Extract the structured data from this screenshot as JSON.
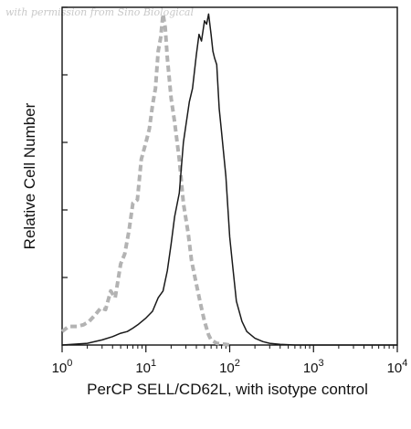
{
  "watermark": "with permission from Sino Biological",
  "chart_data": {
    "type": "line",
    "title": "",
    "xlabel": "PerCP SELL/CD62L, with isotype control",
    "ylabel": "Relative Cell Number",
    "x_scale": "log",
    "xlim": [
      1,
      10000
    ],
    "ylim": [
      0,
      100
    ],
    "x_ticks": [
      {
        "value": 1,
        "base": "10",
        "exp": "0"
      },
      {
        "value": 10,
        "base": "10",
        "exp": "1"
      },
      {
        "value": 100,
        "base": "10",
        "exp": "2"
      },
      {
        "value": 1000,
        "base": "10",
        "exp": "3"
      },
      {
        "value": 10000,
        "base": "10",
        "exp": "4"
      }
    ],
    "y_ticks": [
      0,
      20,
      40,
      60,
      80,
      100
    ],
    "grid": false,
    "legend": "none",
    "series": [
      {
        "style": "dashed",
        "color": "#b3b3b3",
        "x": [
          1.0,
          1.2,
          1.5,
          1.8,
          2.1,
          2.5,
          2.9,
          3.3,
          3.8,
          4.3,
          5.0,
          5.6,
          6.3,
          7.0,
          7.9,
          8.8,
          10,
          11,
          12,
          13,
          14,
          15,
          16,
          17,
          18,
          20,
          22,
          25,
          28,
          32,
          35,
          40,
          45,
          50,
          56,
          60,
          65,
          70,
          80,
          90,
          100
        ],
        "y": [
          4,
          5.5,
          5.5,
          6,
          7,
          9,
          11,
          10.5,
          16,
          14,
          24,
          27,
          34,
          42,
          43,
          55,
          60,
          64,
          71,
          76,
          87,
          91,
          98,
          94,
          85,
          73,
          66,
          55,
          42,
          33,
          25,
          18,
          12,
          7,
          3,
          1.5,
          1,
          0.5,
          0.3,
          0.2,
          0
        ]
      },
      {
        "style": "solid",
        "color": "#1a1a1a",
        "x": [
          1.0,
          2,
          3,
          4,
          5,
          6,
          7,
          8,
          10,
          12,
          14,
          16,
          18,
          20,
          22,
          25,
          28,
          30,
          33,
          36,
          40,
          43,
          46,
          50,
          53,
          56,
          60,
          63,
          66,
          70,
          75,
          80,
          90,
          100,
          110,
          120,
          140,
          160,
          200,
          250,
          300,
          400,
          600,
          1000,
          10000
        ],
        "y": [
          0,
          0.5,
          1.5,
          2.5,
          3.5,
          4,
          5,
          6,
          8,
          10,
          14,
          16,
          22,
          30,
          38,
          45,
          60,
          65,
          72,
          76,
          86,
          92,
          90,
          96,
          95,
          98,
          92,
          87,
          85,
          83,
          70,
          63,
          50,
          32,
          22,
          13,
          7,
          4,
          2,
          1,
          0.5,
          0.2,
          0,
          0,
          0
        ]
      }
    ]
  }
}
